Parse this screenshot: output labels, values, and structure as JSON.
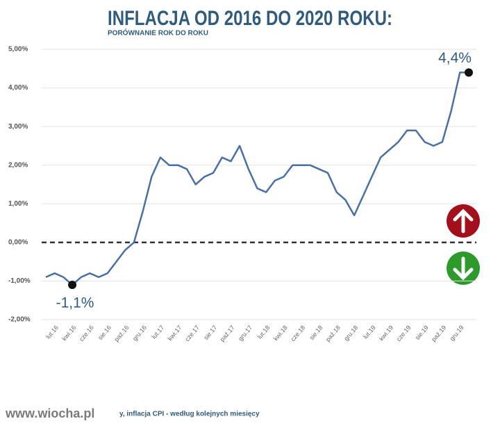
{
  "chart_data": {
    "type": "line",
    "title": "INFLACJA OD 2016 DO 2020 ROKU:",
    "subtitle": "PORÓWNANIE ROK DO ROKU",
    "footer": "y, inflacja CPI - według kolejnych miesięcy",
    "watermark": "www.wiocha.pl",
    "categories": [
      null,
      "lut.16",
      null,
      "kwi.16",
      null,
      "cze.16",
      null,
      "sie.16",
      null,
      "paź.16",
      null,
      "gru.16",
      null,
      "lut.17",
      null,
      "kwi.17",
      null,
      "cze.17",
      null,
      "sie.17",
      null,
      "paź.17",
      null,
      "gru.17",
      null,
      "lut.18",
      null,
      "kwi.18",
      null,
      "cze.18",
      null,
      "sie.18",
      null,
      "paź.18",
      null,
      "gru.18",
      null,
      "lut.19",
      null,
      "kwi.19",
      null,
      "cze.19",
      null,
      "sie.19",
      null,
      "paź.19",
      null,
      "gru.19",
      null
    ],
    "series": [
      {
        "name": "CPI",
        "color": "#4a6fa5",
        "values": [
          -0.9,
          -0.8,
          -0.9,
          -1.1,
          -0.9,
          -0.8,
          -0.9,
          -0.8,
          -0.5,
          -0.2,
          0.0,
          0.8,
          1.7,
          2.2,
          2.0,
          2.0,
          1.9,
          1.5,
          1.7,
          1.8,
          2.2,
          2.1,
          2.5,
          1.9,
          1.4,
          1.3,
          1.6,
          1.7,
          2.0,
          2.0,
          2.0,
          1.9,
          1.8,
          1.3,
          1.1,
          0.7,
          1.2,
          1.7,
          2.2,
          2.4,
          2.6,
          2.9,
          2.9,
          2.6,
          2.5,
          2.6,
          3.4,
          4.4,
          4.4
        ],
        "value_labels": [
          null,
          null,
          null,
          "-1,1%",
          null,
          null,
          null,
          null,
          null,
          null,
          null,
          null,
          null,
          null,
          null,
          null,
          null,
          null,
          null,
          null,
          null,
          null,
          null,
          null,
          null,
          null,
          null,
          null,
          null,
          null,
          null,
          null,
          null,
          null,
          null,
          null,
          null,
          null,
          null,
          null,
          null,
          null,
          null,
          null,
          null,
          null,
          null,
          null,
          "4,4%"
        ]
      }
    ],
    "ylim": [
      -2,
      5
    ],
    "yticks": [
      {
        "value": -2,
        "label": "-2,00%"
      },
      {
        "value": -1,
        "label": "-1,00%"
      },
      {
        "value": 0,
        "label": "0,00%"
      },
      {
        "value": 1,
        "label": "1,00%"
      },
      {
        "value": 2,
        "label": "2,00%"
      },
      {
        "value": 3,
        "label": "3,00%"
      },
      {
        "value": 4,
        "label": "4,00%"
      },
      {
        "value": 5,
        "label": "5,00%"
      }
    ],
    "grid": true
  }
}
